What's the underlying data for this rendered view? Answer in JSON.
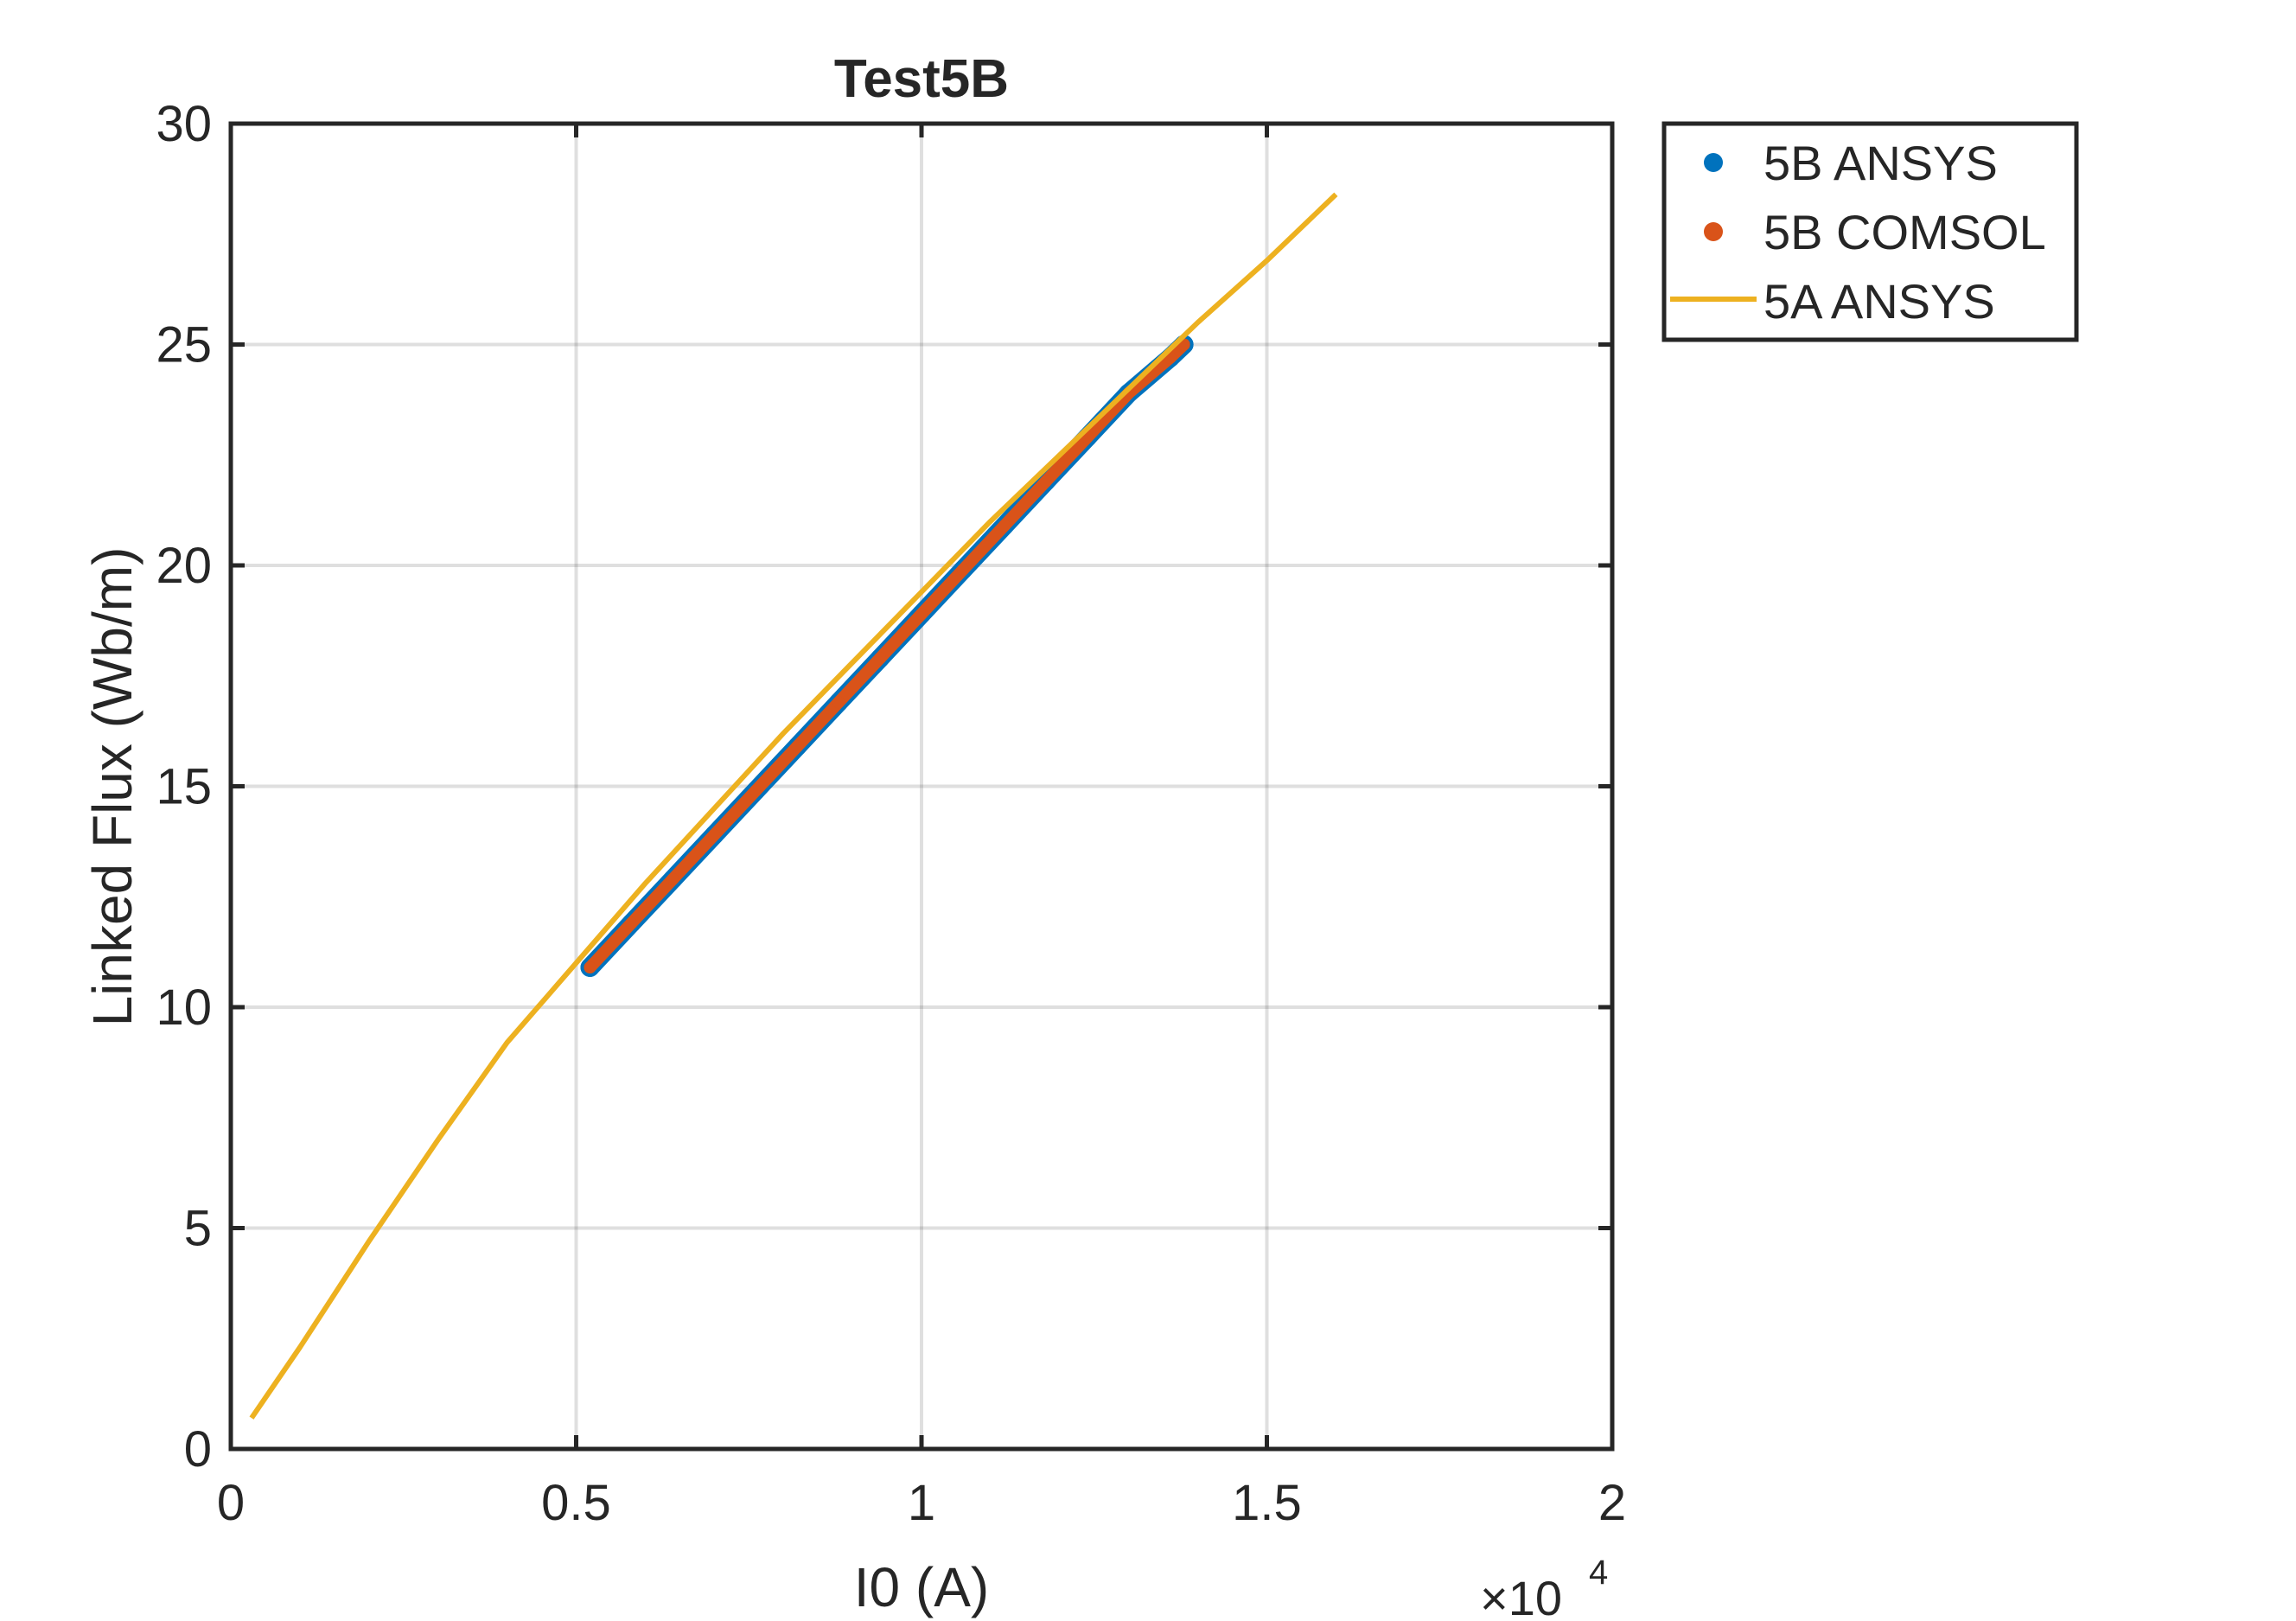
{
  "chart_data": {
    "type": "scatter",
    "title": "Test5B",
    "xlabel": "I0 (A)",
    "ylabel": "Linked Flux (Wb/m)",
    "x_exponent_label": "×10",
    "x_exponent_power": "4",
    "x_scale": 10000,
    "xlim": [
      0,
      20000
    ],
    "ylim": [
      0,
      30
    ],
    "xticks": [
      0,
      5000,
      10000,
      15000,
      20000
    ],
    "xtick_labels": [
      "0",
      "0.5",
      "1",
      "1.5",
      "2"
    ],
    "yticks": [
      0,
      5,
      10,
      15,
      20,
      25,
      30
    ],
    "ytick_labels": [
      "0",
      "5",
      "10",
      "15",
      "20",
      "25",
      "30"
    ],
    "grid": true,
    "legend_position": "outside-top-right",
    "series": [
      {
        "name": "5B ANSYS",
        "type": "scatter",
        "color": "#0072BD",
        "x": [
          5200,
          5800,
          6400,
          7000,
          7600,
          8200,
          8800,
          9400,
          10000,
          10600,
          11200,
          11800,
          12400,
          13000,
          13600,
          13800
        ],
        "y": [
          10.9,
          11.9,
          12.9,
          13.9,
          14.9,
          15.9,
          16.9,
          17.9,
          18.9,
          19.9,
          20.9,
          21.9,
          22.9,
          23.9,
          24.7,
          25.0
        ]
      },
      {
        "name": "5B COMSOL",
        "type": "scatter",
        "color": "#D95319",
        "x": [
          5200,
          5800,
          6400,
          7000,
          7600,
          8200,
          8800,
          9400,
          10000,
          10600,
          11200,
          11800,
          12400,
          13000,
          13600,
          13800
        ],
        "y": [
          10.9,
          11.9,
          12.9,
          13.9,
          14.9,
          15.9,
          16.9,
          17.9,
          18.9,
          19.9,
          20.9,
          21.9,
          22.9,
          23.9,
          24.7,
          25.0
        ]
      },
      {
        "name": "5A ANSYS",
        "type": "line",
        "color": "#EDB120",
        "x": [
          300,
          1000,
          2000,
          3000,
          4000,
          5000,
          6000,
          7000,
          8000,
          9000,
          10000,
          11000,
          12000,
          13000,
          14000,
          15000,
          16000
        ],
        "y": [
          0.7,
          2.3,
          4.7,
          7.0,
          9.2,
          11.0,
          12.8,
          14.5,
          16.2,
          17.8,
          19.4,
          21.0,
          22.5,
          24.0,
          25.5,
          26.9,
          28.4
        ]
      }
    ]
  }
}
